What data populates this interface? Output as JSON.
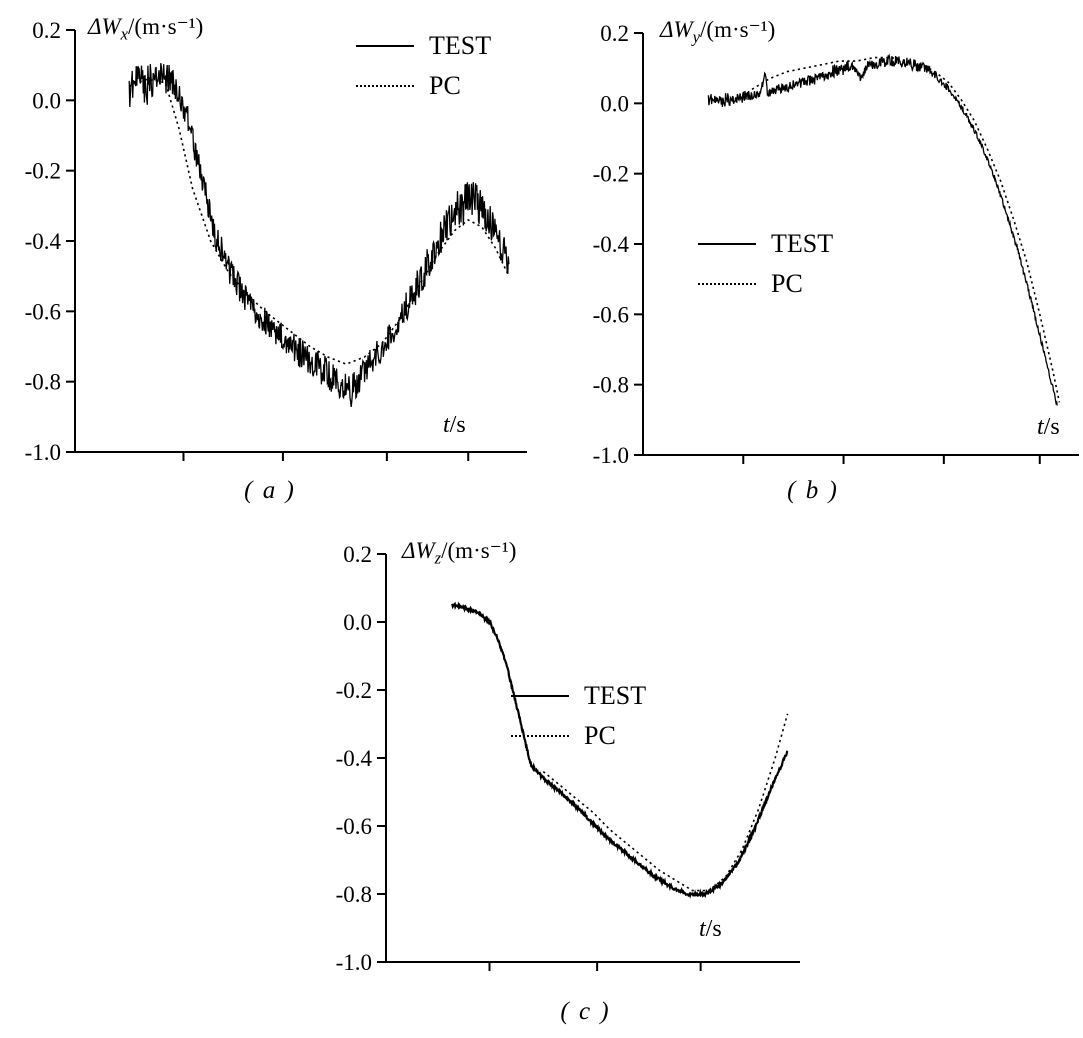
{
  "colors": {
    "line": "#000000",
    "background": "#ffffff"
  },
  "chart_data": [
    {
      "id": "a",
      "type": "line",
      "title_prefix": "ΔW",
      "title_sub": "x",
      "title_suffix": "/(m·s⁻¹)",
      "xlabel_var": "t",
      "xlabel_unit": "/s",
      "caption": "( a )",
      "ylim": [
        -1.0,
        0.2
      ],
      "yticks": [
        0.2,
        0.0,
        -0.2,
        -0.4,
        -0.6,
        -0.8,
        -1.0
      ],
      "xticks": [
        0.24,
        0.46,
        0.69,
        0.87
      ],
      "legend_position": "top-right",
      "series": [
        {
          "name": "TEST",
          "style": "solid",
          "thickness": 1.3,
          "x": [
            0.12,
            0.14,
            0.16,
            0.18,
            0.2,
            0.22,
            0.25,
            0.28,
            0.31,
            0.34,
            0.37,
            0.4,
            0.44,
            0.48,
            0.52,
            0.55,
            0.58,
            0.61,
            0.64,
            0.67,
            0.7,
            0.74,
            0.78,
            0.82,
            0.85,
            0.88,
            0.91,
            0.94,
            0.96
          ],
          "y": [
            0.02,
            0.05,
            0.04,
            0.07,
            0.07,
            0.04,
            -0.05,
            -0.22,
            -0.38,
            -0.48,
            -0.55,
            -0.6,
            -0.65,
            -0.7,
            -0.74,
            -0.77,
            -0.8,
            -0.83,
            -0.77,
            -0.72,
            -0.66,
            -0.57,
            -0.47,
            -0.37,
            -0.31,
            -0.28,
            -0.33,
            -0.4,
            -0.47
          ],
          "noise": [
            0.055,
            0.06,
            0.06,
            0.05,
            0.05,
            0.05,
            0.04,
            0.035,
            0.04,
            0.04,
            0.04,
            0.04,
            0.04,
            0.04,
            0.045,
            0.05,
            0.05,
            0.045,
            0.04,
            0.04,
            0.04,
            0.045,
            0.05,
            0.055,
            0.06,
            0.06,
            0.055,
            0.05,
            0.045
          ]
        },
        {
          "name": "PC",
          "style": "dotted",
          "thickness": 1.6,
          "x": [
            0.12,
            0.16,
            0.2,
            0.23,
            0.26,
            0.3,
            0.34,
            0.38,
            0.42,
            0.47,
            0.52,
            0.56,
            0.6,
            0.64,
            0.68,
            0.72,
            0.76,
            0.8,
            0.84,
            0.87,
            0.9,
            0.93,
            0.96
          ],
          "y": [
            0.04,
            0.06,
            0.05,
            -0.08,
            -0.25,
            -0.4,
            -0.49,
            -0.55,
            -0.6,
            -0.65,
            -0.7,
            -0.73,
            -0.75,
            -0.73,
            -0.69,
            -0.62,
            -0.53,
            -0.44,
            -0.37,
            -0.34,
            -0.36,
            -0.42,
            -0.5
          ]
        }
      ]
    },
    {
      "id": "b",
      "type": "line",
      "title_prefix": "ΔW",
      "title_sub": "y",
      "title_suffix": "/(m·s⁻¹)",
      "xlabel_var": "t",
      "xlabel_unit": "/s",
      "caption": "( b )",
      "ylim": [
        -1.0,
        0.2
      ],
      "yticks": [
        0.2,
        0.0,
        -0.2,
        -0.4,
        -0.6,
        -0.8,
        -1.0
      ],
      "xticks": [
        0.23,
        0.46,
        0.69,
        0.91
      ],
      "legend_position": "middle-left",
      "series": [
        {
          "name": "TEST",
          "style": "solid",
          "thickness": 1.3,
          "x": [
            0.15,
            0.17,
            0.19,
            0.21,
            0.23,
            0.25,
            0.27,
            0.28,
            0.285,
            0.29,
            0.31,
            0.34,
            0.37,
            0.4,
            0.43,
            0.46,
            0.48,
            0.5,
            0.515,
            0.53,
            0.56,
            0.59,
            0.62,
            0.65,
            0.68,
            0.71,
            0.74,
            0.77,
            0.8,
            0.83,
            0.86,
            0.89,
            0.92,
            0.95
          ],
          "y": [
            0.01,
            0.0,
            0.01,
            0.01,
            0.02,
            0.02,
            0.03,
            0.09,
            0.03,
            0.03,
            0.04,
            0.05,
            0.06,
            0.07,
            0.09,
            0.1,
            0.11,
            0.07,
            0.11,
            0.11,
            0.12,
            0.12,
            0.11,
            0.1,
            0.07,
            0.03,
            -0.03,
            -0.1,
            -0.19,
            -0.3,
            -0.42,
            -0.56,
            -0.71,
            -0.86
          ],
          "noise": [
            0.02,
            0.02,
            0.02,
            0.018,
            0.018,
            0.018,
            0.012,
            0.01,
            0.01,
            0.012,
            0.014,
            0.014,
            0.014,
            0.016,
            0.018,
            0.02,
            0.015,
            0.01,
            0.01,
            0.015,
            0.018,
            0.018,
            0.016,
            0.014,
            0.012,
            0.01,
            0.008,
            0.008,
            0.008,
            0.008,
            0.008,
            0.008,
            0.008,
            0.008
          ]
        },
        {
          "name": "PC",
          "style": "dotted",
          "thickness": 1.6,
          "x": [
            0.25,
            0.29,
            0.33,
            0.37,
            0.41,
            0.45,
            0.49,
            0.53,
            0.57,
            0.61,
            0.64,
            0.67,
            0.7,
            0.73,
            0.76,
            0.79,
            0.82,
            0.85,
            0.88,
            0.91,
            0.94,
            0.955
          ],
          "y": [
            0.04,
            0.07,
            0.09,
            0.1,
            0.11,
            0.12,
            0.12,
            0.13,
            0.13,
            0.12,
            0.11,
            0.09,
            0.06,
            0.01,
            -0.05,
            -0.13,
            -0.22,
            -0.33,
            -0.45,
            -0.6,
            -0.76,
            -0.85
          ]
        }
      ]
    },
    {
      "id": "c",
      "type": "line",
      "title_prefix": "ΔW",
      "title_sub": "z",
      "title_suffix": "/(m·s⁻¹)",
      "xlabel_var": "t",
      "xlabel_unit": "/s",
      "caption": "( c )",
      "ylim": [
        -1.0,
        0.2
      ],
      "yticks": [
        0.2,
        0.0,
        -0.2,
        -0.4,
        -0.6,
        -0.8,
        -1.0
      ],
      "xticks": [
        0.25,
        0.51,
        0.76
      ],
      "legend_position": "middle",
      "series": [
        {
          "name": "TEST",
          "style": "solid",
          "thickness": 2.2,
          "x": [
            0.16,
            0.19,
            0.22,
            0.25,
            0.27,
            0.29,
            0.31,
            0.33,
            0.35,
            0.38,
            0.41,
            0.45,
            0.49,
            0.53,
            0.57,
            0.61,
            0.65,
            0.69,
            0.73,
            0.77,
            0.81,
            0.85,
            0.89,
            0.93,
            0.97
          ],
          "y": [
            0.05,
            0.04,
            0.03,
            0.0,
            -0.05,
            -0.12,
            -0.22,
            -0.32,
            -0.42,
            -0.46,
            -0.49,
            -0.53,
            -0.58,
            -0.63,
            -0.67,
            -0.71,
            -0.75,
            -0.78,
            -0.8,
            -0.8,
            -0.77,
            -0.71,
            -0.61,
            -0.49,
            -0.38
          ],
          "noise": 0.005
        },
        {
          "name": "PC",
          "style": "dotted",
          "thickness": 1.6,
          "x": [
            0.38,
            0.42,
            0.46,
            0.5,
            0.54,
            0.58,
            0.62,
            0.66,
            0.7,
            0.74,
            0.78,
            0.82,
            0.86,
            0.9,
            0.94,
            0.97
          ],
          "y": [
            -0.44,
            -0.48,
            -0.52,
            -0.56,
            -0.61,
            -0.65,
            -0.69,
            -0.73,
            -0.76,
            -0.79,
            -0.79,
            -0.75,
            -0.67,
            -0.55,
            -0.4,
            -0.27
          ]
        }
      ]
    }
  ]
}
